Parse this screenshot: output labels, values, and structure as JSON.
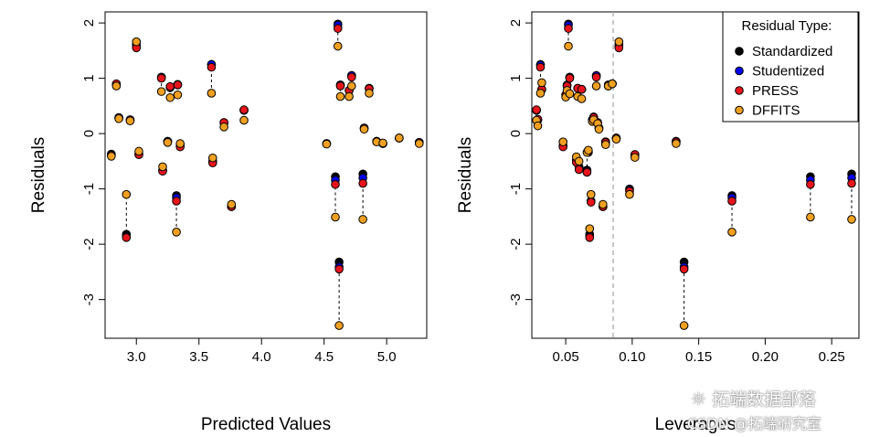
{
  "chart_data": [
    {
      "type": "scatter",
      "xlabel": "Predicted Values",
      "ylabel": "Residuals",
      "xlim": [
        2.75,
        5.32
      ],
      "ylim": [
        -3.7,
        2.2
      ],
      "xticks": [
        "3.0",
        "3.5",
        "4.0",
        "4.5",
        "5.0"
      ],
      "xtick_values": [
        3.0,
        3.5,
        4.0,
        4.5,
        5.0
      ],
      "yticks": [
        "-3",
        "-2",
        "-1",
        "0",
        "1",
        "2"
      ],
      "ytick_values": [
        -3,
        -2,
        -1,
        0,
        1,
        2
      ],
      "grid": false,
      "x": [
        2.8,
        2.84,
        2.86,
        2.92,
        2.95,
        3.0,
        3.02,
        3.2,
        3.21,
        3.25,
        3.27,
        3.32,
        3.33,
        3.35,
        3.6,
        3.61,
        3.7,
        3.76,
        3.86,
        4.52,
        4.59,
        4.61,
        4.62,
        4.63,
        4.7,
        4.72,
        4.81,
        4.82,
        4.86,
        4.92,
        4.97,
        5.1,
        5.26
      ],
      "series": [
        {
          "name": "Standardized",
          "color": "#000000",
          "values": [
            -0.37,
            0.88,
            0.28,
            -1.82,
            0.25,
            1.58,
            -0.37,
            1.02,
            -0.66,
            -0.14,
            0.83,
            -1.12,
            0.88,
            -0.22,
            1.25,
            -0.5,
            0.2,
            -1.32,
            0.42,
            -0.18,
            -0.78,
            1.98,
            -2.32,
            0.88,
            0.78,
            1.05,
            -0.73,
            0.1,
            0.82,
            -0.14,
            -0.18,
            -0.08,
            -0.16
          ]
        },
        {
          "name": "Studentized",
          "color": "#0000ee",
          "values": [
            -0.38,
            0.89,
            0.28,
            -1.86,
            0.25,
            1.61,
            -0.38,
            1.02,
            -0.67,
            -0.14,
            0.84,
            -1.16,
            0.89,
            -0.22,
            1.25,
            -0.51,
            0.2,
            -1.32,
            0.42,
            -0.18,
            -0.84,
            1.96,
            -2.41,
            0.88,
            0.78,
            1.05,
            -0.8,
            0.1,
            0.82,
            -0.14,
            -0.18,
            -0.08,
            -0.16
          ]
        },
        {
          "name": "PRESS",
          "color": "#e8141c",
          "values": [
            -0.39,
            0.9,
            0.29,
            -1.88,
            0.25,
            1.55,
            -0.38,
            1.0,
            -0.68,
            -0.15,
            0.85,
            -1.22,
            0.88,
            -0.24,
            1.2,
            -0.53,
            0.2,
            -1.32,
            0.43,
            -0.18,
            -0.92,
            1.9,
            -2.45,
            0.86,
            0.78,
            1.02,
            -0.9,
            0.1,
            0.81,
            -0.14,
            -0.18,
            -0.08,
            -0.16
          ]
        },
        {
          "name": "DFFITS",
          "color": "#f0a020",
          "values": [
            -0.41,
            0.86,
            0.27,
            -1.1,
            0.23,
            1.66,
            -0.32,
            0.76,
            -0.6,
            -0.16,
            0.65,
            -1.78,
            0.7,
            -0.18,
            0.73,
            -0.44,
            0.12,
            -1.28,
            0.24,
            -0.19,
            -1.51,
            1.58,
            -3.47,
            0.67,
            0.67,
            0.86,
            -1.55,
            0.08,
            0.73,
            -0.15,
            -0.17,
            -0.08,
            -0.18
          ]
        }
      ]
    },
    {
      "type": "scatter",
      "xlabel": "Leverages",
      "ylabel": "Residuals",
      "xlim": [
        0.0245,
        0.2705
      ],
      "ylim": [
        -3.7,
        2.2
      ],
      "xticks": [
        "0.05",
        "0.10",
        "0.15",
        "0.20",
        "0.25"
      ],
      "xtick_values": [
        0.05,
        0.1,
        0.15,
        0.2,
        0.25
      ],
      "yticks": [
        "-3",
        "-2",
        "-1",
        "0",
        "1",
        "2"
      ],
      "ytick_values": [
        -3,
        -2,
        -1,
        0,
        1,
        2
      ],
      "grid": false,
      "reference_line": {
        "x": 0.0857,
        "style": "dashed",
        "color": "#aaaaaa"
      },
      "legend": {
        "title": "Residual Type:",
        "position": "top-right"
      },
      "x": [
        0.028,
        0.029,
        0.031,
        0.032,
        0.048,
        0.05,
        0.051,
        0.052,
        0.053,
        0.058,
        0.059,
        0.06,
        0.062,
        0.066,
        0.067,
        0.068,
        0.069,
        0.07,
        0.071,
        0.073,
        0.074,
        0.075,
        0.078,
        0.08,
        0.082,
        0.085,
        0.088,
        0.09,
        0.098,
        0.102,
        0.133,
        0.139,
        0.175,
        0.234,
        0.265
      ],
      "series": [
        {
          "name": "Standardized",
          "color": "#000000",
          "values": [
            0.42,
            0.25,
            1.25,
            0.8,
            -0.22,
            0.7,
            0.88,
            1.98,
            1.02,
            -0.48,
            0.82,
            -0.6,
            0.8,
            -0.66,
            -0.33,
            -1.82,
            -1.22,
            0.25,
            0.3,
            1.05,
            0.2,
            0.1,
            -1.32,
            -0.15,
            0.88,
            0.9,
            -0.08,
            1.58,
            -1.0,
            -0.38,
            -0.14,
            -2.32,
            -1.12,
            -0.78,
            -0.73
          ]
        },
        {
          "name": "Studentized",
          "color": "#0000ee",
          "values": [
            0.42,
            0.25,
            1.24,
            0.8,
            -0.22,
            0.7,
            0.87,
            1.96,
            1.02,
            -0.5,
            0.82,
            -0.62,
            0.8,
            -0.68,
            -0.33,
            -1.86,
            -1.22,
            0.25,
            0.3,
            1.05,
            0.2,
            0.1,
            -1.32,
            -0.15,
            0.88,
            0.9,
            -0.08,
            1.61,
            -1.02,
            -0.38,
            -0.14,
            -2.41,
            -1.16,
            -0.84,
            -0.8
          ]
        },
        {
          "name": "PRESS",
          "color": "#e8141c",
          "values": [
            0.43,
            0.26,
            1.2,
            0.8,
            -0.24,
            0.7,
            0.86,
            1.9,
            1.0,
            -0.52,
            0.82,
            -0.65,
            0.8,
            -0.7,
            -0.34,
            -1.88,
            -1.24,
            0.25,
            0.29,
            1.02,
            0.2,
            0.1,
            -1.32,
            -0.16,
            0.86,
            0.9,
            -0.08,
            1.55,
            -1.04,
            -0.38,
            -0.15,
            -2.45,
            -1.22,
            -0.92,
            -0.9
          ]
        },
        {
          "name": "DFFITS",
          "color": "#f0a020",
          "values": [
            0.24,
            0.14,
            0.73,
            0.92,
            -0.15,
            0.66,
            0.78,
            1.58,
            0.72,
            -0.42,
            0.67,
            -0.5,
            0.63,
            -0.34,
            -0.3,
            -1.72,
            -1.1,
            0.22,
            0.25,
            0.86,
            0.18,
            0.08,
            -1.28,
            -0.2,
            0.86,
            0.9,
            -0.1,
            1.66,
            -1.1,
            -0.43,
            -0.18,
            -3.47,
            -1.78,
            -1.51,
            -1.55
          ]
        }
      ]
    }
  ],
  "watermark": {
    "line1": "拓端数据部落",
    "line2": "CSDN @拓端研究室"
  }
}
